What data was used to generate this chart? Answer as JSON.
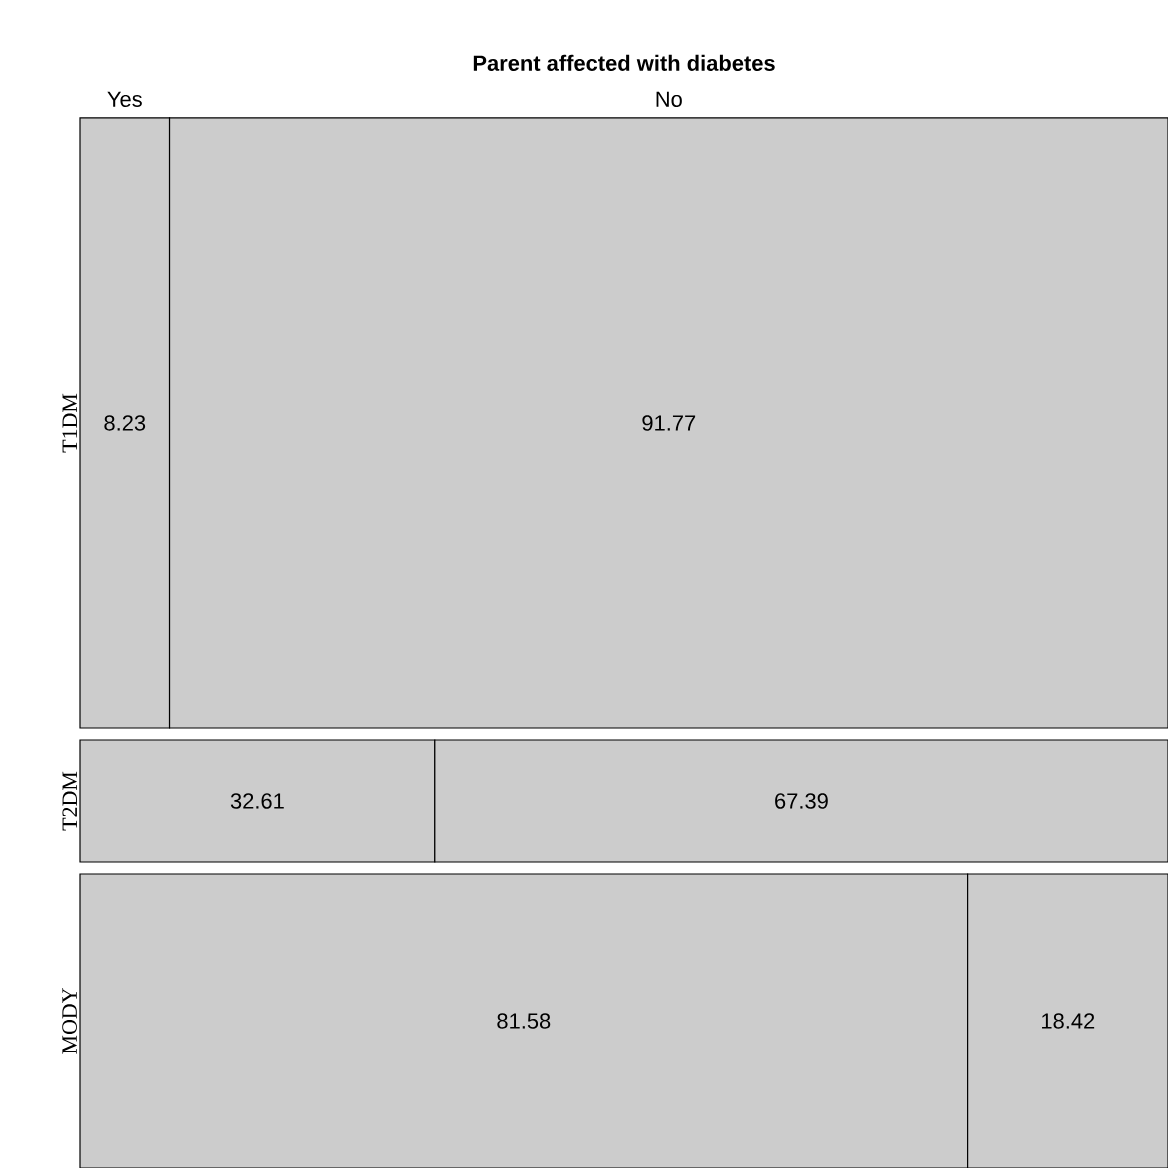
{
  "chart_data": {
    "type": "bar",
    "orientation": "horizontal",
    "stacked": true,
    "legend_title": "Parent affected with diabetes",
    "legend": "top",
    "categories": [
      "T1DM",
      "T2DM",
      "MODY"
    ],
    "series": [
      {
        "name": "Yes",
        "color": "#cccccc",
        "values": [
          8.23,
          32.61,
          81.58
        ]
      },
      {
        "name": "No",
        "color": "#cccccc",
        "values": [
          91.77,
          67.39,
          18.42
        ]
      }
    ],
    "xlim": [
      0,
      100
    ],
    "data_labels": true,
    "tick_labels": "y"
  }
}
